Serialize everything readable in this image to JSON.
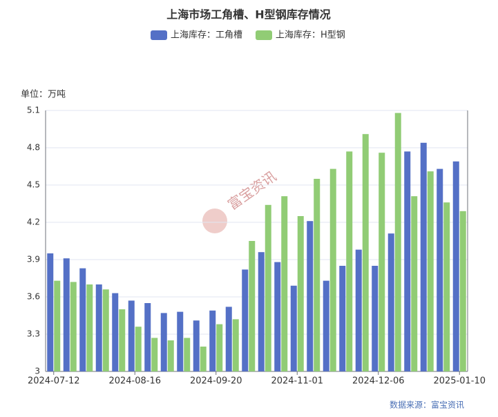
{
  "chart_data": {
    "type": "bar",
    "title": "上海市场工角槽、H型钢库存情况",
    "y_axis_label": "单位：万吨",
    "source": "数据来源：富宝资讯",
    "watermark": "富宝资讯",
    "categories": [
      "2024-07-12",
      null,
      null,
      null,
      null,
      "2024-08-16",
      null,
      null,
      null,
      null,
      "2024-09-20",
      null,
      null,
      null,
      null,
      "2024-11-01",
      null,
      null,
      null,
      null,
      "2024-12-06",
      null,
      null,
      null,
      null,
      "2025-01-10"
    ],
    "series": [
      {
        "name": "上海库存：工角槽",
        "color": "#5470c6",
        "values": [
          3.95,
          3.91,
          3.83,
          3.7,
          3.63,
          3.57,
          3.55,
          3.47,
          3.48,
          3.41,
          3.49,
          3.52,
          3.82,
          3.96,
          3.88,
          3.69,
          4.21,
          3.73,
          3.85,
          3.98,
          3.85,
          4.11,
          4.77,
          4.84,
          4.63,
          4.69
        ]
      },
      {
        "name": "上海库存：H型钢",
        "color": "#91cc75",
        "values": [
          3.73,
          3.72,
          3.7,
          3.66,
          3.5,
          3.36,
          3.27,
          3.25,
          3.27,
          3.2,
          3.38,
          3.42,
          4.05,
          4.34,
          4.41,
          4.25,
          4.55,
          4.63,
          4.77,
          4.91,
          4.76,
          5.08,
          4.41,
          4.61,
          4.36,
          4.29
        ]
      }
    ],
    "ylim": [
      3,
      5.1
    ],
    "yticks": [
      3,
      3.3,
      3.6,
      3.9,
      4.2,
      4.5,
      4.8,
      5.1
    ],
    "grid": true
  }
}
